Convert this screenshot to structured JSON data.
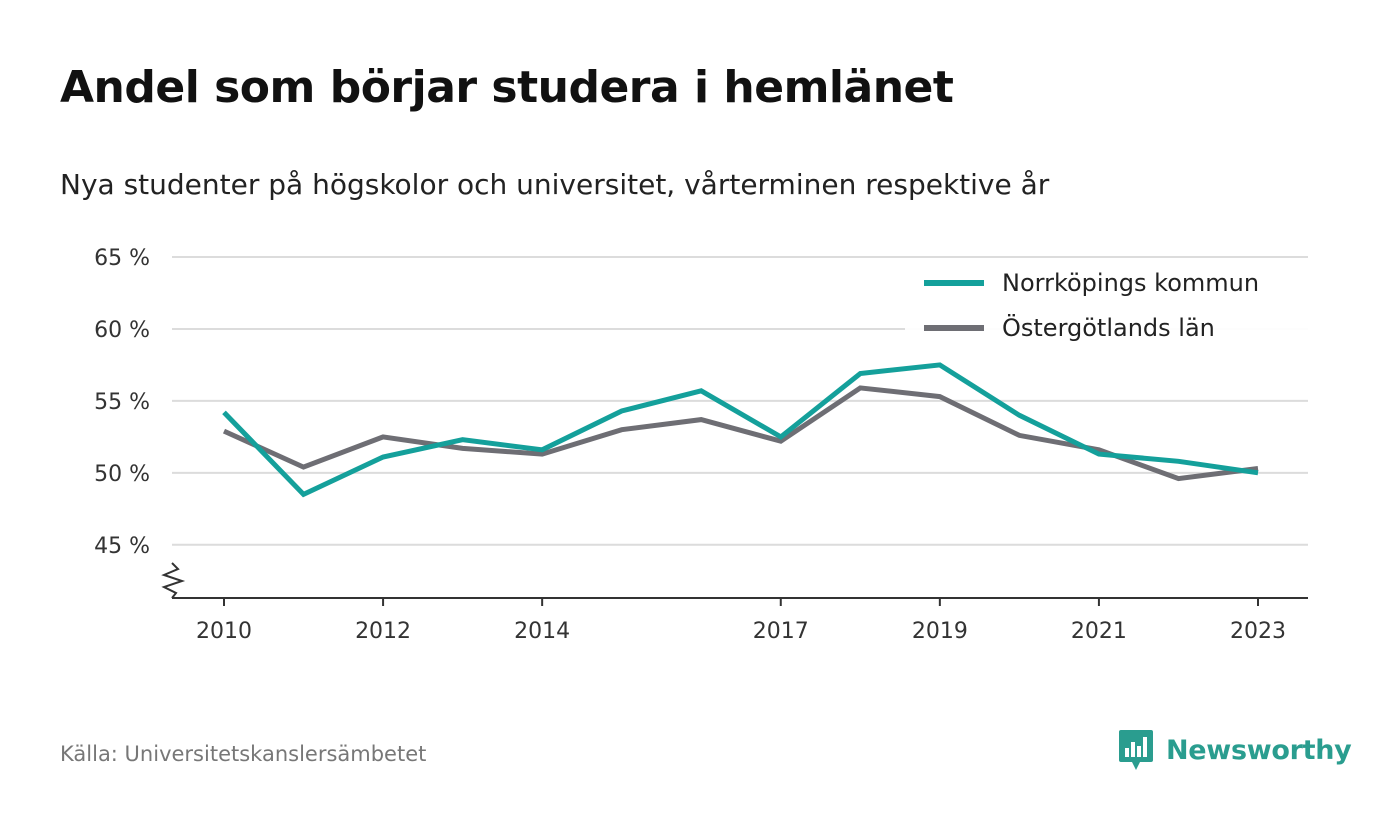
{
  "header": {
    "title": "Andel som börjar studera i hemlänet",
    "subtitle": "Nya studenter på högskolor och universitet, vårterminen respektive år"
  },
  "footer": {
    "source": "Källa: Universitetskanslersämbetet",
    "brand": "Newsworthy",
    "brand_icon": "bar-chart-speech-bubble-icon"
  },
  "colors": {
    "series_primary": "#14a09b",
    "series_secondary": "#6e6e74",
    "gridline": "#dcdcdc",
    "axis": "#333333",
    "brand": "#2a9d8f"
  },
  "chart_data": {
    "type": "line",
    "x": [
      2010,
      2011,
      2012,
      2013,
      2014,
      2015,
      2016,
      2017,
      2018,
      2019,
      2020,
      2021,
      2022,
      2023
    ],
    "x_tick_values": [
      2010,
      2012,
      2014,
      2017,
      2019,
      2021,
      2023
    ],
    "x_tick_labels": [
      "2010",
      "2012",
      "2014",
      "2017",
      "2019",
      "2021",
      "2023"
    ],
    "y_tick_values": [
      45,
      50,
      55,
      60,
      65
    ],
    "y_tick_labels": [
      "45 %",
      "50 %",
      "55 %",
      "60 %",
      "65 %"
    ],
    "ylim": [
      41.3,
      65
    ],
    "y_axis_break": true,
    "grid": true,
    "legend_position": "top-right",
    "series": [
      {
        "name": "Norrköpings kommun",
        "color": "#14a09b",
        "values": [
          54.2,
          48.5,
          51.1,
          52.3,
          51.6,
          54.3,
          55.7,
          52.5,
          56.9,
          57.5,
          54.0,
          51.3,
          50.8,
          50.0
        ]
      },
      {
        "name": "Östergötlands län",
        "color": "#6e6e74",
        "values": [
          52.9,
          50.4,
          52.5,
          51.7,
          51.3,
          53.0,
          53.7,
          52.2,
          55.9,
          55.3,
          52.6,
          51.6,
          49.6,
          50.3
        ]
      }
    ]
  }
}
